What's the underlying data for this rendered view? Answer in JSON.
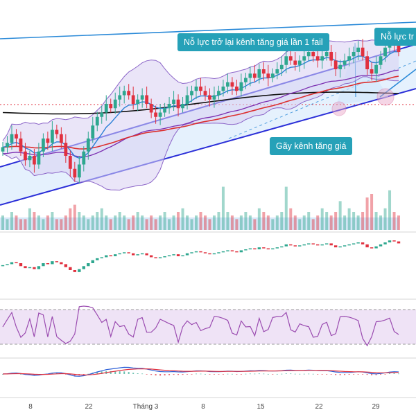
{
  "colors": {
    "up": "#2ea78f",
    "down": "#e0313f",
    "channel": "#2b2fd8",
    "channel_fill": "#cfe6fb",
    "trendline_top": "#2b8ad8",
    "bollinger": "#8b64c8",
    "bollinger_fill": "#d8d0f3",
    "ema_fast": "#2a7fd6",
    "ema_mid": "#dc2f2f",
    "ema_slow": "#111111",
    "ema_purple": "#7a2cb0",
    "callout_bg": "#26a1b8",
    "rsi": "#9a4bb0",
    "rsi_band": "#efe3f6",
    "macd": "#2b5fd8",
    "signal": "#e0313f"
  },
  "annotations": {
    "fail_retry": "Nỗ lực trở lại kênh tăng giá lần 1 fail",
    "retry_2": "Nỗ lực tr",
    "break": "Gãy kênh tăng giá"
  },
  "chart_data": {
    "type": "candlestick",
    "x_ticks": [
      "8",
      "22",
      "Tháng 3",
      "8",
      "15",
      "22",
      "29"
    ],
    "close": [
      100,
      101,
      103,
      102,
      99,
      97,
      98,
      96,
      99,
      102,
      101,
      104,
      103,
      101,
      98,
      95,
      93,
      96,
      99,
      102,
      105,
      107,
      108,
      110,
      109,
      111,
      112,
      113,
      112,
      110,
      111,
      112,
      110,
      108,
      107,
      108,
      109,
      110,
      111,
      109,
      110,
      112,
      113,
      114,
      113,
      112,
      111,
      112,
      113,
      114,
      115,
      114,
      113,
      115,
      116,
      117,
      116,
      118,
      117,
      116,
      117,
      118,
      119,
      121,
      120,
      119,
      120,
      121,
      122,
      121,
      120,
      121,
      122,
      120,
      118,
      119,
      120,
      121,
      122,
      123,
      121,
      118,
      117,
      119,
      121,
      123,
      125,
      124,
      122
    ],
    "volume": [
      4,
      3,
      5,
      4,
      3,
      3,
      6,
      5,
      4,
      3,
      4,
      5,
      3,
      3,
      4,
      6,
      7,
      5,
      4,
      3,
      4,
      5,
      6,
      4,
      3,
      4,
      5,
      4,
      3,
      4,
      5,
      4,
      3,
      4,
      3,
      4,
      5,
      3,
      4,
      5,
      6,
      4,
      3,
      4,
      5,
      4,
      3,
      4,
      5,
      12,
      5,
      4,
      3,
      4,
      5,
      4,
      3,
      6,
      5,
      4,
      3,
      4,
      5,
      12,
      6,
      4,
      3,
      4,
      5,
      3,
      4,
      6,
      5,
      4,
      5,
      8,
      4,
      6,
      5,
      4,
      5,
      9,
      10,
      5,
      4,
      6,
      11,
      5,
      4
    ],
    "rsi_levels": [
      70,
      30
    ],
    "panels": [
      "price",
      "volume",
      "oscillator",
      "rsi",
      "macd"
    ]
  }
}
